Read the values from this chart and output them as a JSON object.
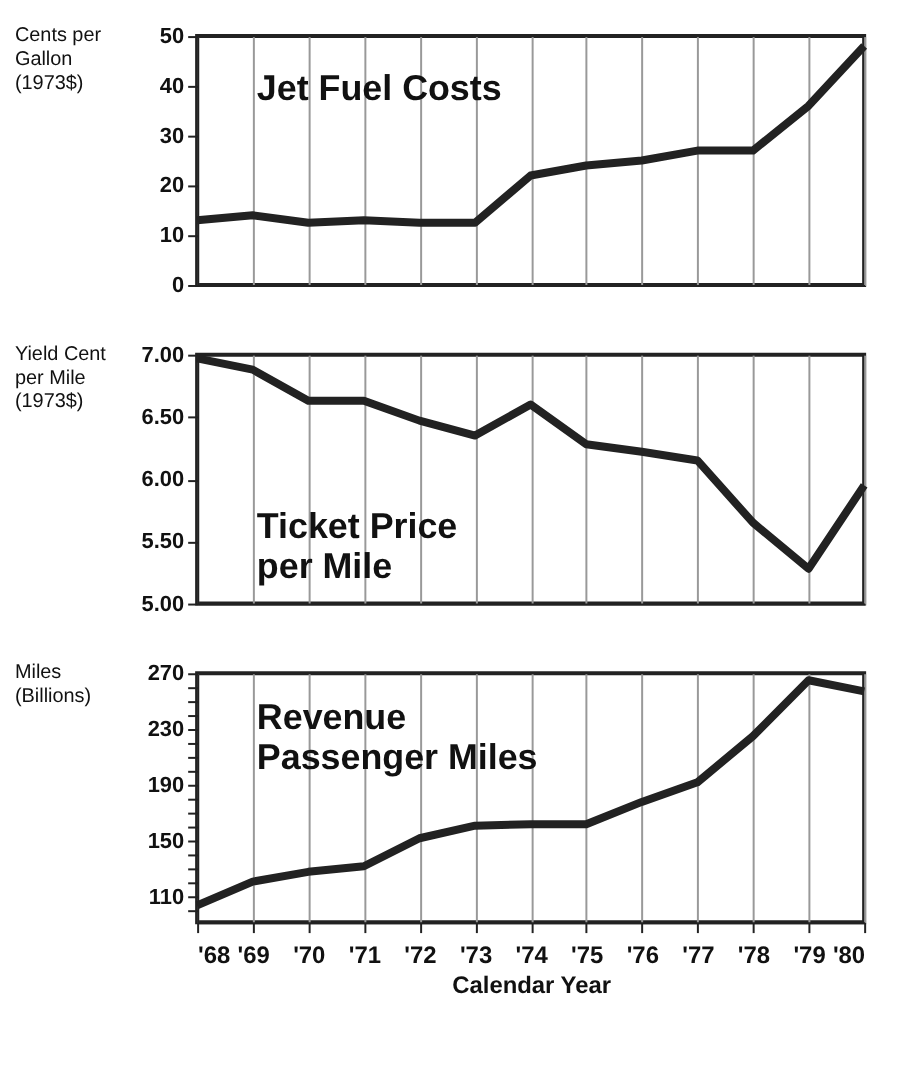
{
  "chart_data": [
    {
      "type": "line",
      "title": "Jet Fuel Costs",
      "ylabel": "Cents per Gallon (1973$)",
      "x": [
        1968,
        1969,
        1970,
        1971,
        1972,
        1973,
        1974,
        1975,
        1976,
        1977,
        1978,
        1979,
        1980
      ],
      "series": [
        {
          "color": "#222222",
          "values": [
            13,
            14,
            12.5,
            13,
            12.5,
            12.5,
            22,
            24,
            25,
            27,
            27,
            36,
            48
          ]
        }
      ],
      "xlim": [
        1968,
        1980
      ],
      "xticks": [
        {
          "value": 1968,
          "label": null
        },
        {
          "value": 1969,
          "label": null
        },
        {
          "value": 1970,
          "label": null
        },
        {
          "value": 1971,
          "label": null
        },
        {
          "value": 1972,
          "label": null
        },
        {
          "value": 1973,
          "label": null
        },
        {
          "value": 1974,
          "label": null
        },
        {
          "value": 1975,
          "label": null
        },
        {
          "value": 1976,
          "label": null
        },
        {
          "value": 1977,
          "label": null
        },
        {
          "value": 1978,
          "label": null
        },
        {
          "value": 1979,
          "label": null
        },
        {
          "value": 1980,
          "label": null
        }
      ],
      "ylim": [
        0,
        50
      ],
      "yticks": [
        0,
        10,
        20,
        30,
        40,
        50
      ],
      "grid": "x",
      "marker": "none",
      "line_style": "solid",
      "tick_labels": "y"
    },
    {
      "type": "line",
      "title": "Ticket Price per Mile",
      "ylabel": "Yield Cent per Mile (1973$)",
      "x": [
        1968,
        1969,
        1970,
        1971,
        1972,
        1973,
        1974,
        1975,
        1976,
        1977,
        1978,
        1979,
        1980
      ],
      "series": [
        {
          "color": "#222222",
          "values": [
            6.97,
            6.88,
            6.63,
            6.63,
            6.47,
            6.35,
            6.6,
            6.28,
            6.22,
            6.15,
            5.65,
            5.28,
            5.95
          ]
        }
      ],
      "xlim": [
        1968,
        1980
      ],
      "xticks": [
        {
          "value": 1968,
          "label": null
        },
        {
          "value": 1969,
          "label": null
        },
        {
          "value": 1970,
          "label": null
        },
        {
          "value": 1971,
          "label": null
        },
        {
          "value": 1972,
          "label": null
        },
        {
          "value": 1973,
          "label": null
        },
        {
          "value": 1974,
          "label": null
        },
        {
          "value": 1975,
          "label": null
        },
        {
          "value": 1976,
          "label": null
        },
        {
          "value": 1977,
          "label": null
        },
        {
          "value": 1978,
          "label": null
        },
        {
          "value": 1979,
          "label": null
        },
        {
          "value": 1980,
          "label": null
        }
      ],
      "ylim": [
        5,
        7
      ],
      "yticks": [
        {
          "value": 5,
          "label": "5.00"
        },
        {
          "value": 5.5,
          "label": "5.50"
        },
        {
          "value": 6,
          "label": "6.00"
        },
        {
          "value": 6.5,
          "label": "6.50"
        },
        {
          "value": 7,
          "label": "7.00"
        }
      ],
      "grid": "x",
      "marker": "none",
      "line_style": "solid",
      "tick_labels": "y"
    },
    {
      "type": "line",
      "title": "Revenue Passenger Miles",
      "ylabel": "Miles (Billions)",
      "xlabel": "Calendar Year",
      "x": [
        1968,
        1969,
        1970,
        1971,
        1972,
        1973,
        1974,
        1975,
        1976,
        1977,
        1978,
        1979,
        1980
      ],
      "series": [
        {
          "color": "#222222",
          "values": [
            104,
            121,
            128,
            132,
            152,
            161,
            162,
            162,
            178,
            192,
            225,
            265,
            257
          ]
        }
      ],
      "xlim": [
        1968,
        1980
      ],
      "xticks": [
        {
          "value": 1968,
          "label": "'68"
        },
        {
          "value": 1969,
          "label": "'69"
        },
        {
          "value": 1970,
          "label": "'70"
        },
        {
          "value": 1971,
          "label": "'71"
        },
        {
          "value": 1972,
          "label": "'72"
        },
        {
          "value": 1973,
          "label": "'73"
        },
        {
          "value": 1974,
          "label": "'74"
        },
        {
          "value": 1975,
          "label": "'75"
        },
        {
          "value": 1976,
          "label": "'76"
        },
        {
          "value": 1977,
          "label": "'77"
        },
        {
          "value": 1978,
          "label": "'78"
        },
        {
          "value": 1979,
          "label": "'79"
        },
        {
          "value": 1980,
          "label": "'80"
        }
      ],
      "ylim": [
        92,
        270
      ],
      "yticks": [
        {
          "value": 100,
          "label": null
        },
        110,
        {
          "value": 120,
          "label": null
        },
        {
          "value": 130,
          "label": null
        },
        {
          "value": 140,
          "label": null
        },
        150,
        {
          "value": 160,
          "label": null
        },
        {
          "value": 170,
          "label": null
        },
        {
          "value": 180,
          "label": null
        },
        190,
        {
          "value": 200,
          "label": null
        },
        {
          "value": 210,
          "label": null
        },
        {
          "value": 220,
          "label": null
        },
        230,
        {
          "value": 240,
          "label": null
        },
        {
          "value": 250,
          "label": null
        },
        {
          "value": 260,
          "label": null
        },
        270
      ],
      "grid": "x",
      "marker": "none",
      "line_style": "solid"
    }
  ]
}
